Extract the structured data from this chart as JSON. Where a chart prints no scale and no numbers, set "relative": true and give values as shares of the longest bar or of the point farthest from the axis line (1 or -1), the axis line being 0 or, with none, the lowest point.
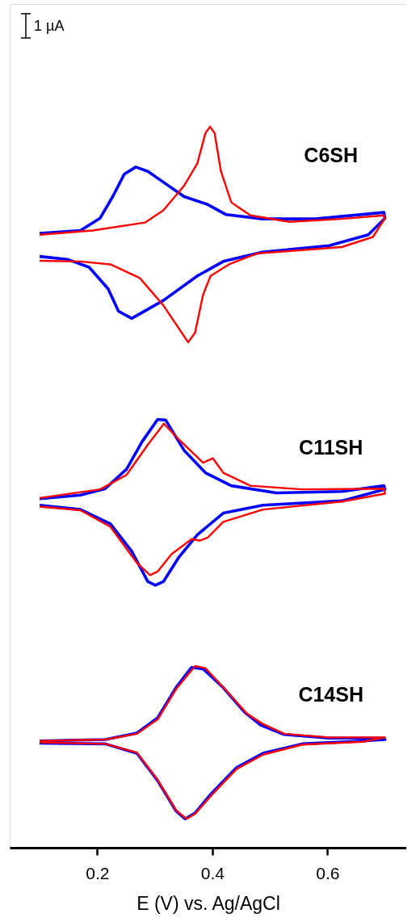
{
  "chart_data": {
    "type": "line",
    "relative": true,
    "xlabel": "E (V) vs. Ag/AgCl",
    "xlim": [
      0.048,
      0.737
    ],
    "xticks": [
      {
        "value": 0.2,
        "label": "0.2"
      },
      {
        "value": 0.4,
        "label": "0.4"
      },
      {
        "value": 0.6,
        "label": "0.6"
      }
    ],
    "annotations": [
      "1 µA",
      "C6SH",
      "C11SH",
      "C14SH"
    ],
    "series": [
      {
        "color": "#0000ff",
        "x": [
          0.1,
          0.171,
          0.205,
          0.227,
          0.247,
          0.267,
          0.288,
          0.315,
          0.351,
          0.392,
          0.424,
          0.487,
          0.579,
          0.698,
          0.7,
          0.671,
          0.603,
          0.487,
          0.419,
          0.374,
          0.315,
          0.26,
          0.237,
          0.219,
          0.186,
          0.148,
          0.1
        ],
        "values": [
          0.852,
          0.856,
          0.873,
          0.903,
          0.934,
          0.944,
          0.938,
          0.923,
          0.903,
          0.892,
          0.878,
          0.872,
          0.872,
          0.881,
          0.873,
          0.85,
          0.835,
          0.826,
          0.813,
          0.793,
          0.759,
          0.734,
          0.744,
          0.775,
          0.805,
          0.816,
          0.82
        ]
      },
      {
        "color": "#ff0000",
        "x": [
          0.1,
          0.192,
          0.283,
          0.315,
          0.351,
          0.374,
          0.388,
          0.396,
          0.404,
          0.415,
          0.433,
          0.466,
          0.534,
          0.625,
          0.698,
          0.7,
          0.679,
          0.625,
          0.477,
          0.429,
          0.397,
          0.384,
          0.37,
          0.358,
          0.347,
          0.315,
          0.274,
          0.223,
          0.171,
          0.1
        ],
        "values": [
          0.85,
          0.856,
          0.867,
          0.884,
          0.918,
          0.949,
          0.991,
          1,
          0.991,
          0.938,
          0.895,
          0.877,
          0.868,
          0.872,
          0.877,
          0.873,
          0.847,
          0.833,
          0.824,
          0.809,
          0.793,
          0.767,
          0.714,
          0.701,
          0.714,
          0.752,
          0.79,
          0.809,
          0.813,
          0.814
        ]
      },
      {
        "color": "#0000ff",
        "x": [
          0.1,
          0.171,
          0.214,
          0.251,
          0.278,
          0.305,
          0.319,
          0.351,
          0.388,
          0.433,
          0.511,
          0.625,
          0.698,
          0.7,
          0.625,
          0.488,
          0.419,
          0.374,
          0.342,
          0.315,
          0.301,
          0.288,
          0.26,
          0.223,
          0.171,
          0.1
        ],
        "values": [
          0.484,
          0.489,
          0.498,
          0.525,
          0.563,
          0.594,
          0.593,
          0.551,
          0.52,
          0.502,
          0.492,
          0.494,
          0.502,
          0.497,
          0.481,
          0.475,
          0.464,
          0.434,
          0.403,
          0.369,
          0.364,
          0.369,
          0.411,
          0.449,
          0.469,
          0.475
        ]
      },
      {
        "color": "#ff0000",
        "x": [
          0.1,
          0.205,
          0.251,
          0.288,
          0.316,
          0.342,
          0.384,
          0.401,
          0.419,
          0.466,
          0.556,
          0.698,
          0.7,
          0.625,
          0.488,
          0.419,
          0.392,
          0.378,
          0.364,
          0.329,
          0.305,
          0.292,
          0.269,
          0.223,
          0.171,
          0.1
        ],
        "values": [
          0.485,
          0.497,
          0.517,
          0.559,
          0.588,
          0.566,
          0.534,
          0.54,
          0.52,
          0.502,
          0.497,
          0.498,
          0.491,
          0.48,
          0.469,
          0.452,
          0.43,
          0.426,
          0.428,
          0.407,
          0.383,
          0.378,
          0.395,
          0.445,
          0.468,
          0.473
        ]
      },
      {
        "color": "#0000ff",
        "x": [
          0.1,
          0.214,
          0.269,
          0.305,
          0.337,
          0.364,
          0.384,
          0.419,
          0.456,
          0.484,
          0.525,
          0.603,
          0.698,
          0.7,
          0.662,
          0.556,
          0.488,
          0.442,
          0.397,
          0.37,
          0.353,
          0.337,
          0.305,
          0.269,
          0.214,
          0.1
        ],
        "values": [
          0.148,
          0.15,
          0.159,
          0.18,
          0.222,
          0.25,
          0.248,
          0.222,
          0.188,
          0.17,
          0.157,
          0.152,
          0.152,
          0.15,
          0.148,
          0.144,
          0.131,
          0.111,
          0.074,
          0.048,
          0.04,
          0.051,
          0.093,
          0.131,
          0.144,
          0.145
        ]
      },
      {
        "color": "#ff0000",
        "x": [
          0.1,
          0.214,
          0.269,
          0.305,
          0.337,
          0.37,
          0.388,
          0.424,
          0.46,
          0.487,
          0.525,
          0.603,
          0.7,
          0.662,
          0.556,
          0.488,
          0.442,
          0.4,
          0.37,
          0.355,
          0.337,
          0.305,
          0.269,
          0.214,
          0.1
        ],
        "values": [
          0.148,
          0.15,
          0.158,
          0.178,
          0.22,
          0.252,
          0.249,
          0.218,
          0.186,
          0.172,
          0.158,
          0.153,
          0.153,
          0.147,
          0.143,
          0.129,
          0.109,
          0.074,
          0.047,
          0.04,
          0.052,
          0.094,
          0.132,
          0.144,
          0.146
        ]
      }
    ]
  }
}
